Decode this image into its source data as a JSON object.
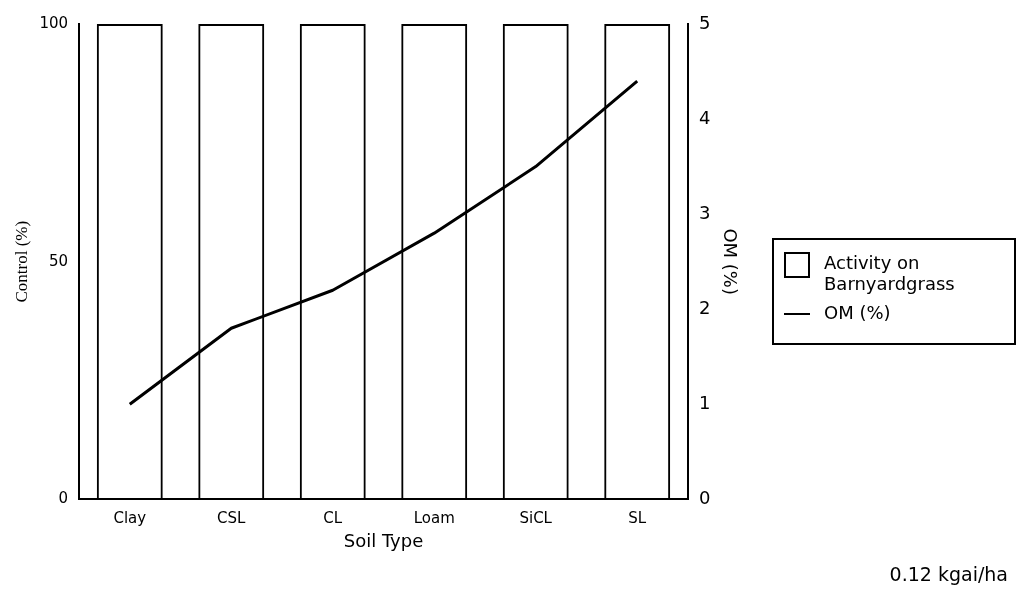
{
  "chart_data": {
    "type": "bar",
    "categories": [
      "Clay",
      "CSL",
      "CL",
      "Loam",
      "SiCL",
      "SL"
    ],
    "series": [
      {
        "name": "Activity on Barnyardgrass",
        "color": "#000000",
        "values": [
          100,
          100,
          100,
          100,
          100,
          100
        ]
      },
      {
        "name": "OM (%)",
        "type": "line",
        "axis": "y2",
        "color": "#000000",
        "values": [
          1.0,
          1.8,
          2.2,
          2.8,
          3.5,
          4.4
        ]
      }
    ],
    "xlabel": "Soil Type",
    "ylabel": "Control (%)",
    "y2label": "OM (%)",
    "ylim": [
      0,
      100
    ],
    "yticks": [
      0,
      50,
      100
    ],
    "y2lim": [
      0,
      5
    ],
    "y2ticks": [
      0,
      1,
      2,
      3,
      4,
      5
    ],
    "grid": false,
    "legend": "right",
    "marker": "none",
    "line_style": "solid",
    "annotations": [
      "0.12 kgai/ha"
    ]
  }
}
